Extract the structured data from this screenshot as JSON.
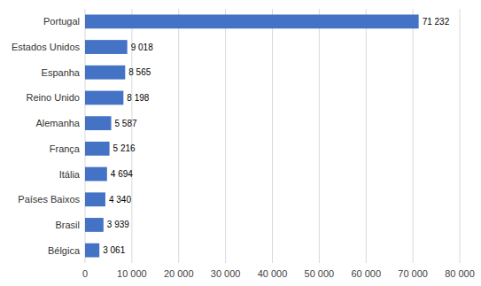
{
  "chart_data": {
    "type": "bar",
    "orientation": "horizontal",
    "categories": [
      "Bélgica",
      "Brasil",
      "Países Baixos",
      "Itália",
      "França",
      "Alemanha",
      "Reino Unido",
      "Espanha",
      "Estados Unidos",
      "Portugal"
    ],
    "values": [
      3061,
      3939,
      4340,
      4694,
      5216,
      5587,
      8198,
      8565,
      9018,
      71232
    ],
    "value_labels": [
      "3 061",
      "3 939",
      "4 340",
      "4 694",
      "5 216",
      "5 587",
      "8 198",
      "8 565",
      "9 018",
      "71 232"
    ],
    "data_labels": true,
    "color": "#4472C4",
    "xlim": [
      0,
      80000
    ],
    "xticks": [
      0,
      {
        "value": 10000,
        "label": "10 000"
      },
      {
        "value": 20000,
        "label": "20 000"
      },
      {
        "value": 30000,
        "label": "30 000"
      },
      {
        "value": 40000,
        "label": "40 000"
      },
      {
        "value": 50000,
        "label": "50 000"
      },
      {
        "value": 60000,
        "label": "60 000"
      },
      {
        "value": 70000,
        "label": "70 000"
      },
      {
        "value": 80000,
        "label": "80 000"
      }
    ],
    "grid": true
  }
}
